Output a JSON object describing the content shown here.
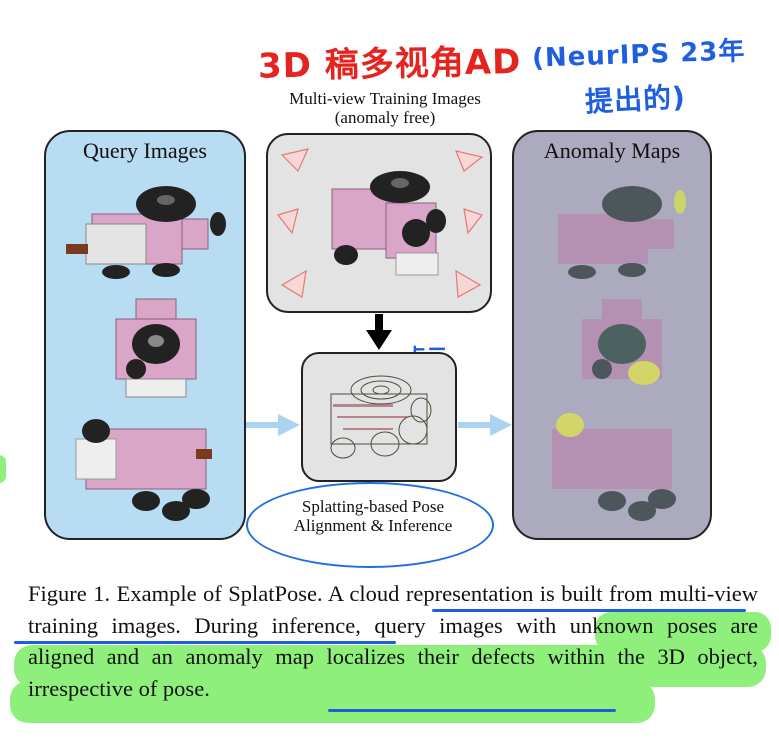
{
  "annotations": {
    "red_note": "3D 稿多视角AD",
    "blue_note_top": "(NeurIPS 23年",
    "blue_note_bottom": "提出的)",
    "blue_note_point_cloud": "点云"
  },
  "figure": {
    "query_title": "Query Images",
    "anomaly_title": "Anomaly Maps",
    "training_caption_line1": "Multi-view Training Images",
    "training_caption_line2": "(anomaly free)",
    "splat_caption_line1": "Splatting-based Pose",
    "splat_caption_line2": "Alignment & Inference"
  },
  "caption": {
    "lead": "Figure 1.  Example of SplatPose.  A ",
    "ul_part": "cloud representation is built from multi-view training images.",
    "mid": " During inference",
    "hl_part": ", query images with unknown poses are aligned and an anomaly map localizes their defects within the 3D ",
    "ul_part2": "object, irrespective of pose",
    "end": "."
  },
  "colors": {
    "query_bg": "#b8ddf2",
    "anomaly_bg": "#abaabe",
    "highlight": "#8ef07a",
    "pen_red": "#e52420",
    "pen_blue": "#1e5fe0",
    "toy_pink": "#d9a6c8"
  }
}
